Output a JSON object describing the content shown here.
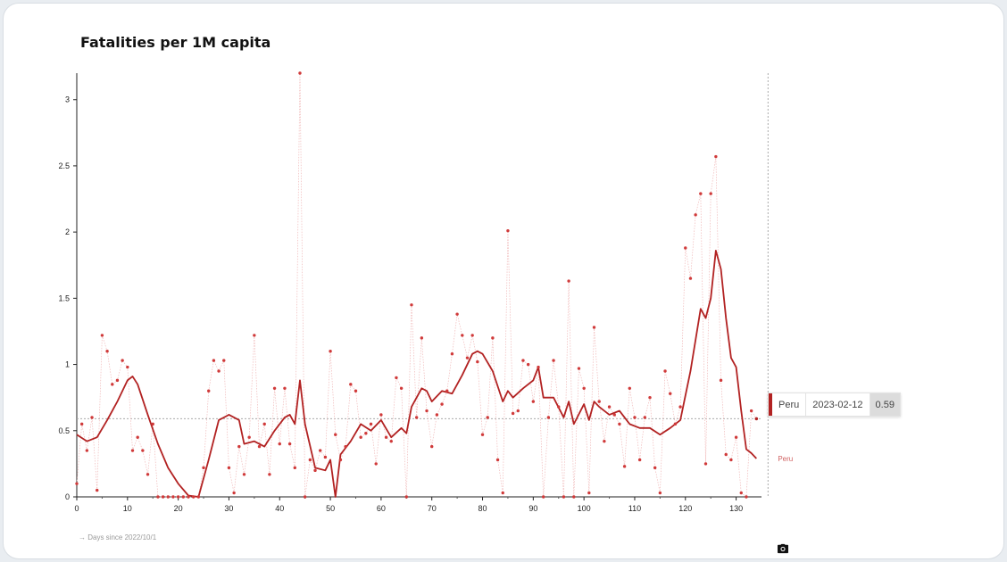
{
  "chart_data": {
    "type": "line",
    "title": "Fatalities per 1M capita",
    "xlabel": "→ Days since 2022/10/1",
    "ylabel": "",
    "xlim": [
      0,
      135
    ],
    "ylim": [
      0,
      3.2
    ],
    "x_ticks": [
      0,
      10,
      20,
      30,
      40,
      50,
      60,
      70,
      80,
      90,
      100,
      110,
      120,
      130
    ],
    "y_ticks": [
      0,
      0.5,
      1,
      1.5,
      2,
      2.5,
      3
    ],
    "y_tick_labels": [
      "0",
      "0.5",
      "1",
      "1.5",
      "2",
      "2.5",
      "3"
    ],
    "grid": false,
    "reference_line_y": 0.59,
    "cursor_x": 134,
    "series": [
      {
        "name": "Peru",
        "kind": "daily points",
        "color": "#d03a3a",
        "points": [
          [
            0,
            0.1
          ],
          [
            1,
            0.55
          ],
          [
            2,
            0.35
          ],
          [
            3,
            0.6
          ],
          [
            4,
            0.05
          ],
          [
            5,
            1.22
          ],
          [
            6,
            1.1
          ],
          [
            7,
            0.85
          ],
          [
            8,
            0.88
          ],
          [
            9,
            1.03
          ],
          [
            10,
            0.98
          ],
          [
            11,
            0.35
          ],
          [
            12,
            0.45
          ],
          [
            13,
            0.35
          ],
          [
            14,
            0.17
          ],
          [
            15,
            0.55
          ],
          [
            16,
            0
          ],
          [
            17,
            0
          ],
          [
            18,
            0
          ],
          [
            19,
            0
          ],
          [
            20,
            0
          ],
          [
            21,
            0
          ],
          [
            22,
            0
          ],
          [
            23,
            0
          ],
          [
            24,
            0
          ],
          [
            25,
            0.22
          ],
          [
            26,
            0.8
          ],
          [
            27,
            1.03
          ],
          [
            28,
            0.95
          ],
          [
            29,
            1.03
          ],
          [
            30,
            0.22
          ],
          [
            31,
            0.03
          ],
          [
            32,
            0.38
          ],
          [
            33,
            0.17
          ],
          [
            34,
            0.45
          ],
          [
            35,
            1.22
          ],
          [
            36,
            0.38
          ],
          [
            37,
            0.55
          ],
          [
            38,
            0.17
          ],
          [
            39,
            0.82
          ],
          [
            40,
            0.4
          ],
          [
            41,
            0.82
          ],
          [
            42,
            0.4
          ],
          [
            43,
            0.22
          ],
          [
            44,
            3.2
          ],
          [
            45,
            0
          ],
          [
            46,
            0.28
          ],
          [
            47,
            0.2
          ],
          [
            48,
            0.35
          ],
          [
            49,
            0.3
          ],
          [
            50,
            1.1
          ],
          [
            51,
            0.47
          ],
          [
            52,
            0.28
          ],
          [
            53,
            0.38
          ],
          [
            54,
            0.85
          ],
          [
            55,
            0.8
          ],
          [
            56,
            0.45
          ],
          [
            57,
            0.48
          ],
          [
            58,
            0.55
          ],
          [
            59,
            0.25
          ],
          [
            60,
            0.62
          ],
          [
            61,
            0.45
          ],
          [
            62,
            0.42
          ],
          [
            63,
            0.9
          ],
          [
            64,
            0.82
          ],
          [
            65,
            0
          ],
          [
            66,
            1.45
          ],
          [
            67,
            0.6
          ],
          [
            68,
            1.2
          ],
          [
            69,
            0.65
          ],
          [
            70,
            0.38
          ],
          [
            71,
            0.62
          ],
          [
            72,
            0.7
          ],
          [
            73,
            0.8
          ],
          [
            74,
            1.08
          ],
          [
            75,
            1.38
          ],
          [
            76,
            1.22
          ],
          [
            77,
            1.05
          ],
          [
            78,
            1.22
          ],
          [
            79,
            1.02
          ],
          [
            80,
            0.47
          ],
          [
            81,
            0.6
          ],
          [
            82,
            1.2
          ],
          [
            83,
            0.28
          ],
          [
            84,
            0.03
          ],
          [
            85,
            2.01
          ],
          [
            86,
            0.63
          ],
          [
            87,
            0.65
          ],
          [
            88,
            1.03
          ],
          [
            89,
            1.0
          ],
          [
            90,
            0.72
          ],
          [
            91,
            0.98
          ],
          [
            92,
            0
          ],
          [
            93,
            0.6
          ],
          [
            94,
            1.03
          ],
          [
            95,
            0.68
          ],
          [
            96,
            0
          ],
          [
            97,
            1.63
          ],
          [
            98,
            0
          ],
          [
            99,
            0.97
          ],
          [
            100,
            0.82
          ],
          [
            101,
            0.03
          ],
          [
            102,
            1.28
          ],
          [
            103,
            0.72
          ],
          [
            104,
            0.42
          ],
          [
            105,
            0.68
          ],
          [
            106,
            0.62
          ],
          [
            107,
            0.55
          ],
          [
            108,
            0.23
          ],
          [
            109,
            0.82
          ],
          [
            110,
            0.6
          ],
          [
            111,
            0.28
          ],
          [
            112,
            0.6
          ],
          [
            113,
            0.75
          ],
          [
            114,
            0.22
          ],
          [
            115,
            0.03
          ],
          [
            116,
            0.95
          ],
          [
            117,
            0.78
          ],
          [
            118,
            0.55
          ],
          [
            119,
            0.68
          ],
          [
            120,
            1.88
          ],
          [
            121,
            1.65
          ],
          [
            122,
            2.13
          ],
          [
            123,
            2.29
          ],
          [
            124,
            0.25
          ],
          [
            125,
            2.29
          ],
          [
            126,
            2.57
          ],
          [
            127,
            0.88
          ],
          [
            128,
            0.32
          ],
          [
            129,
            0.28
          ],
          [
            130,
            0.45
          ],
          [
            131,
            0.03
          ],
          [
            132,
            0
          ],
          [
            133,
            0.65
          ],
          [
            134,
            0.59
          ]
        ]
      },
      {
        "name": "Peru",
        "kind": "smoothed line",
        "color": "#b22222",
        "points": [
          [
            0,
            0.47
          ],
          [
            2,
            0.42
          ],
          [
            4,
            0.45
          ],
          [
            6,
            0.58
          ],
          [
            8,
            0.72
          ],
          [
            10,
            0.88
          ],
          [
            11,
            0.91
          ],
          [
            12,
            0.85
          ],
          [
            14,
            0.62
          ],
          [
            16,
            0.4
          ],
          [
            18,
            0.22
          ],
          [
            20,
            0.1
          ],
          [
            22,
            0.01
          ],
          [
            24,
            0
          ],
          [
            26,
            0.28
          ],
          [
            28,
            0.58
          ],
          [
            30,
            0.62
          ],
          [
            32,
            0.58
          ],
          [
            33,
            0.4
          ],
          [
            35,
            0.42
          ],
          [
            37,
            0.38
          ],
          [
            39,
            0.5
          ],
          [
            41,
            0.6
          ],
          [
            42,
            0.62
          ],
          [
            43,
            0.55
          ],
          [
            44,
            0.88
          ],
          [
            45,
            0.55
          ],
          [
            47,
            0.22
          ],
          [
            49,
            0.2
          ],
          [
            50,
            0.28
          ],
          [
            51,
            0
          ],
          [
            52,
            0.32
          ],
          [
            54,
            0.42
          ],
          [
            56,
            0.55
          ],
          [
            58,
            0.5
          ],
          [
            60,
            0.58
          ],
          [
            62,
            0.45
          ],
          [
            64,
            0.52
          ],
          [
            65,
            0.48
          ],
          [
            66,
            0.68
          ],
          [
            68,
            0.82
          ],
          [
            69,
            0.8
          ],
          [
            70,
            0.72
          ],
          [
            72,
            0.8
          ],
          [
            74,
            0.78
          ],
          [
            76,
            0.92
          ],
          [
            78,
            1.08
          ],
          [
            79,
            1.1
          ],
          [
            80,
            1.08
          ],
          [
            82,
            0.95
          ],
          [
            84,
            0.72
          ],
          [
            85,
            0.8
          ],
          [
            86,
            0.75
          ],
          [
            88,
            0.82
          ],
          [
            90,
            0.88
          ],
          [
            91,
            0.98
          ],
          [
            92,
            0.75
          ],
          [
            94,
            0.75
          ],
          [
            96,
            0.6
          ],
          [
            97,
            0.72
          ],
          [
            98,
            0.55
          ],
          [
            100,
            0.7
          ],
          [
            101,
            0.58
          ],
          [
            102,
            0.72
          ],
          [
            103,
            0.68
          ],
          [
            105,
            0.62
          ],
          [
            107,
            0.65
          ],
          [
            109,
            0.55
          ],
          [
            111,
            0.52
          ],
          [
            113,
            0.52
          ],
          [
            115,
            0.47
          ],
          [
            117,
            0.52
          ],
          [
            119,
            0.58
          ],
          [
            121,
            0.95
          ],
          [
            123,
            1.42
          ],
          [
            124,
            1.35
          ],
          [
            125,
            1.5
          ],
          [
            126,
            1.86
          ],
          [
            127,
            1.72
          ],
          [
            128,
            1.35
          ],
          [
            129,
            1.05
          ],
          [
            130,
            0.98
          ],
          [
            131,
            0.65
          ],
          [
            132,
            0.36
          ],
          [
            133,
            0.33
          ],
          [
            134,
            0.29
          ]
        ]
      }
    ],
    "series_label": "Peru"
  },
  "tooltip": {
    "country": "Peru",
    "date": "2023-02-12",
    "value": "0.59"
  },
  "icons": {
    "camera": "camera-icon"
  }
}
